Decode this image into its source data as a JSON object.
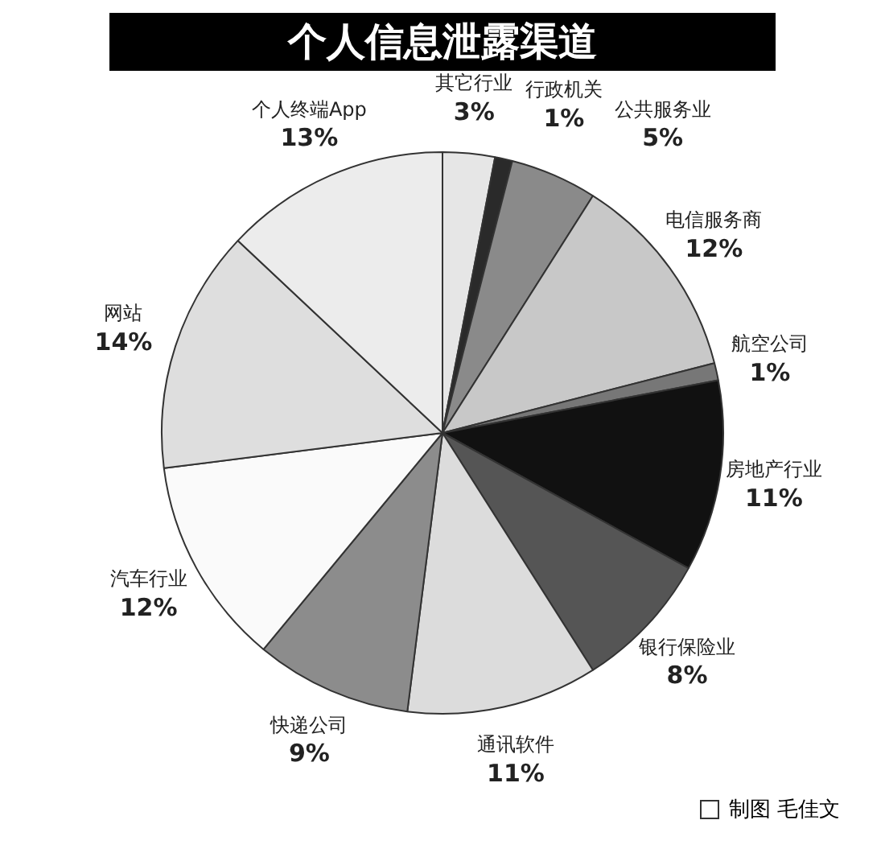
{
  "chart_data": {
    "type": "pie",
    "title": "个人信息泄露渠道",
    "categories": [
      "其它行业",
      "行政机关",
      "公共服务业",
      "电信服务商",
      "航空公司",
      "房地产行业",
      "银行保险业",
      "通讯软件",
      "快递公司",
      "汽车行业",
      "网站",
      "个人终端App"
    ],
    "values": [
      3,
      1,
      5,
      12,
      1,
      11,
      8,
      11,
      9,
      12,
      14,
      13
    ],
    "value_labels": [
      "3%",
      "1%",
      "5%",
      "12%",
      "1%",
      "11%",
      "8%",
      "11%",
      "9%",
      "12%",
      "14%",
      "13%"
    ],
    "colors": [
      "#e6e6e6",
      "#2a2a2a",
      "#8a8a8a",
      "#c8c8c8",
      "#777777",
      "#111111",
      "#555555",
      "#dcdcdc",
      "#8c8c8c",
      "#fafafa",
      "#dedede",
      "#ececec"
    ],
    "annotations": [
      "制图 毛佳文"
    ],
    "legend": false
  }
}
